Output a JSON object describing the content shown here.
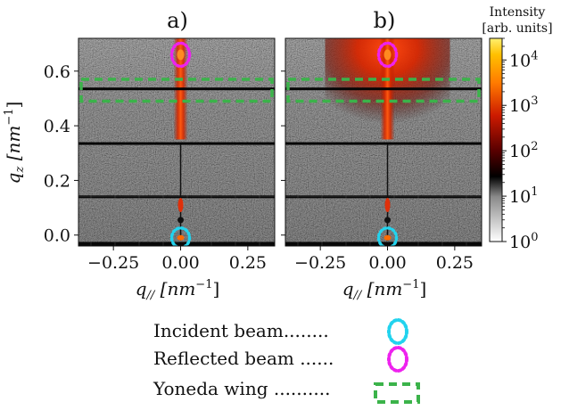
{
  "chart_data": {
    "type": "heatmap",
    "panels": [
      {
        "label": "a)",
        "xlabel_base": "q",
        "xlabel_sub": "//",
        "xlabel_unit": "[nm",
        "xlabel_exp": "−1",
        "xlabel_close": "]"
      },
      {
        "label": "b)",
        "xlabel_base": "q",
        "xlabel_sub": "//",
        "xlabel_unit": "[nm",
        "xlabel_exp": "−1",
        "xlabel_close": "]"
      }
    ],
    "ylabel_base": "q",
    "ylabel_sub": "z",
    "ylabel_unit": "[nm",
    "ylabel_exp": "−1",
    "ylabel_close": "]",
    "xlim": [
      -0.38,
      0.35
    ],
    "ylim": [
      -0.04,
      0.72
    ],
    "x_ticks": [
      {
        "value": -0.25,
        "label": "−0.25"
      },
      {
        "value": 0.0,
        "label": "0.00"
      },
      {
        "value": 0.25,
        "label": "0.25"
      }
    ],
    "y_ticks": [
      {
        "value": 0.0,
        "label": "0.0"
      },
      {
        "value": 0.2,
        "label": "0.2"
      },
      {
        "value": 0.4,
        "label": "0.4"
      },
      {
        "value": 0.6,
        "label": "0.6"
      }
    ],
    "colorbar": {
      "title_line1": "Intensity",
      "title_line2": "[arb. units]",
      "scale": "log",
      "range": [
        1,
        30000
      ],
      "ticks": [
        {
          "exp": 0,
          "base": "10",
          "sup": "0"
        },
        {
          "exp": 1,
          "base": "10",
          "sup": "1"
        },
        {
          "exp": 2,
          "base": "10",
          "sup": "2"
        },
        {
          "exp": 3,
          "base": "10",
          "sup": "3"
        },
        {
          "exp": 4,
          "base": "10",
          "sup": "4"
        }
      ]
    },
    "detector_gaps_qz": [
      0.14,
      0.335,
      0.535
    ],
    "incident_beam": {
      "qx": 0.0,
      "qz": -0.01
    },
    "reflected_beam": {
      "qx": 0.0,
      "qz": 0.66
    },
    "yoneda_band_qz": [
      0.49,
      0.57
    ],
    "legend": [
      {
        "key": "incident",
        "text": "Incident beam........",
        "color": "#22d3ee",
        "shape": "dotted-ellipse"
      },
      {
        "key": "reflected",
        "text": "Reflected beam ......",
        "color": "#ee22ee",
        "shape": "dotted-ellipse"
      },
      {
        "key": "yoneda",
        "text": "Yoneda wing ..........",
        "color": "#3bb34a",
        "shape": "dashed-rect"
      }
    ]
  }
}
